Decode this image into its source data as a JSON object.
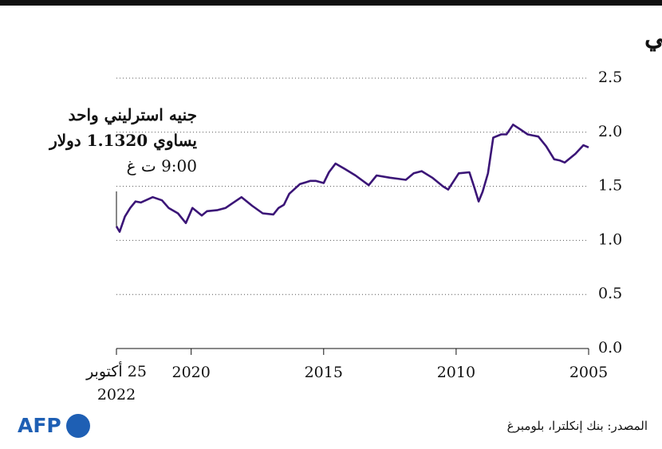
{
  "chart_data": {
    "type": "line",
    "title": "الجنيه الاسترليني مقابل الدولار الأميركي",
    "annotation": [
      "جنيه استرليني واحد",
      "يساوي 1.1320 دولار",
      "9:00 ت غ"
    ],
    "source": "المصدر: بنك إنكلترا، بلومبرغ",
    "logo": "AFP",
    "color": "#3b1577",
    "x": [
      2005.0,
      2005.2,
      2005.5,
      2005.9,
      2006.1,
      2006.3,
      2006.6,
      2006.9,
      2007.1,
      2007.3,
      2007.6,
      2007.85,
      2008.1,
      2008.3,
      2008.6,
      2008.8,
      2009.0,
      2009.15,
      2009.3,
      2009.5,
      2009.9,
      2010.3,
      2010.5,
      2010.9,
      2011.3,
      2011.6,
      2011.9,
      2012.2,
      2012.5,
      2013.0,
      2013.3,
      2013.8,
      2014.2,
      2014.55,
      2014.8,
      2015.0,
      2015.3,
      2015.5,
      2015.9,
      2016.3,
      2016.5,
      2016.7,
      2016.9,
      2017.3,
      2017.7,
      2018.1,
      2018.4,
      2018.7,
      2019.0,
      2019.4,
      2019.6,
      2019.95,
      2020.2,
      2020.5,
      2020.85,
      2021.1,
      2021.45,
      2021.9,
      2022.1,
      2022.3,
      2022.5,
      2022.7,
      2022.82
    ],
    "values": [
      1.86,
      1.88,
      1.8,
      1.72,
      1.74,
      1.75,
      1.87,
      1.96,
      1.97,
      1.98,
      2.03,
      2.07,
      1.98,
      1.98,
      1.95,
      1.62,
      1.45,
      1.36,
      1.48,
      1.63,
      1.62,
      1.47,
      1.5,
      1.58,
      1.64,
      1.62,
      1.56,
      1.57,
      1.58,
      1.6,
      1.51,
      1.6,
      1.66,
      1.71,
      1.63,
      1.53,
      1.55,
      1.55,
      1.52,
      1.43,
      1.33,
      1.3,
      1.24,
      1.25,
      1.32,
      1.4,
      1.35,
      1.3,
      1.28,
      1.27,
      1.23,
      1.3,
      1.16,
      1.25,
      1.3,
      1.37,
      1.4,
      1.35,
      1.36,
      1.3,
      1.22,
      1.08,
      1.13
    ],
    "xlim": [
      2022.82,
      2005
    ],
    "xticks": [
      {
        "value": 2022.82,
        "label": "25 أكتوبر 2022"
      },
      2020,
      2015,
      2010,
      2005
    ],
    "ylim": [
      0,
      2.5
    ],
    "yticks": [
      {
        "value": 0,
        "label": "0.0"
      },
      0.5,
      {
        "value": 1,
        "label": "1.0"
      },
      1.5,
      {
        "value": 2,
        "label": "2.0"
      },
      2.5
    ],
    "grid": true
  }
}
